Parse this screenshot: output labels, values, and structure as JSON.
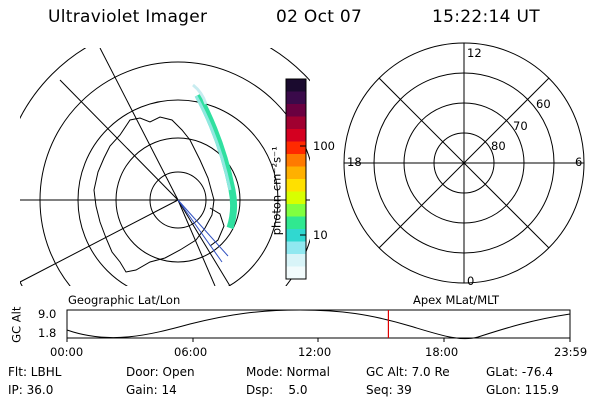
{
  "header": {
    "instrument": "Ultraviolet Imager",
    "date": "02 Oct 07",
    "time": "15:22:14 UT"
  },
  "left_map": {
    "label": "Geographic Lat/Lon"
  },
  "color_bar": {
    "unit_label": "photon cm⁻²s⁻¹",
    "ticks": [
      "100",
      "10"
    ],
    "colors": [
      "#1a0a2e",
      "#3a0a4a",
      "#6a0040",
      "#a00030",
      "#d40020",
      "#ff2a00",
      "#ff7a00",
      "#ffb000",
      "#ffe000",
      "#d8ff00",
      "#80ff40",
      "#30e890",
      "#30d8d0",
      "#90e8f0",
      "#d8f4f8",
      "#f2fbfc"
    ]
  },
  "right_map": {
    "label": "Apex MLat/MLT",
    "mlt_labels": {
      "top": "12",
      "left": "18",
      "right": "6",
      "bottom": "0"
    },
    "lat_labels": [
      "60",
      "70",
      "80"
    ]
  },
  "timeline": {
    "y_label": "GC Alt",
    "y_ticks": [
      "9.0",
      "1.8"
    ],
    "x_ticks": [
      "00:00",
      "06:00",
      "12:00",
      "18:00",
      "23:59"
    ],
    "current_time_fraction": 0.639,
    "marker_color": "#e00000"
  },
  "info": {
    "row1": [
      {
        "label": "Flt: LBHL"
      },
      {
        "label": "Door: Open"
      },
      {
        "label": "Mode: Normal"
      },
      {
        "label": "GC Alt: 7.0 Re"
      },
      {
        "label": "GLat: -76.4"
      }
    ],
    "row2": [
      {
        "label": "IP: 36.0"
      },
      {
        "label": "Gain: 14"
      },
      {
        "label": "Dsp:    5.0"
      },
      {
        "label": "Seq: 39"
      },
      {
        "label": "GLon: 115.9"
      }
    ]
  }
}
